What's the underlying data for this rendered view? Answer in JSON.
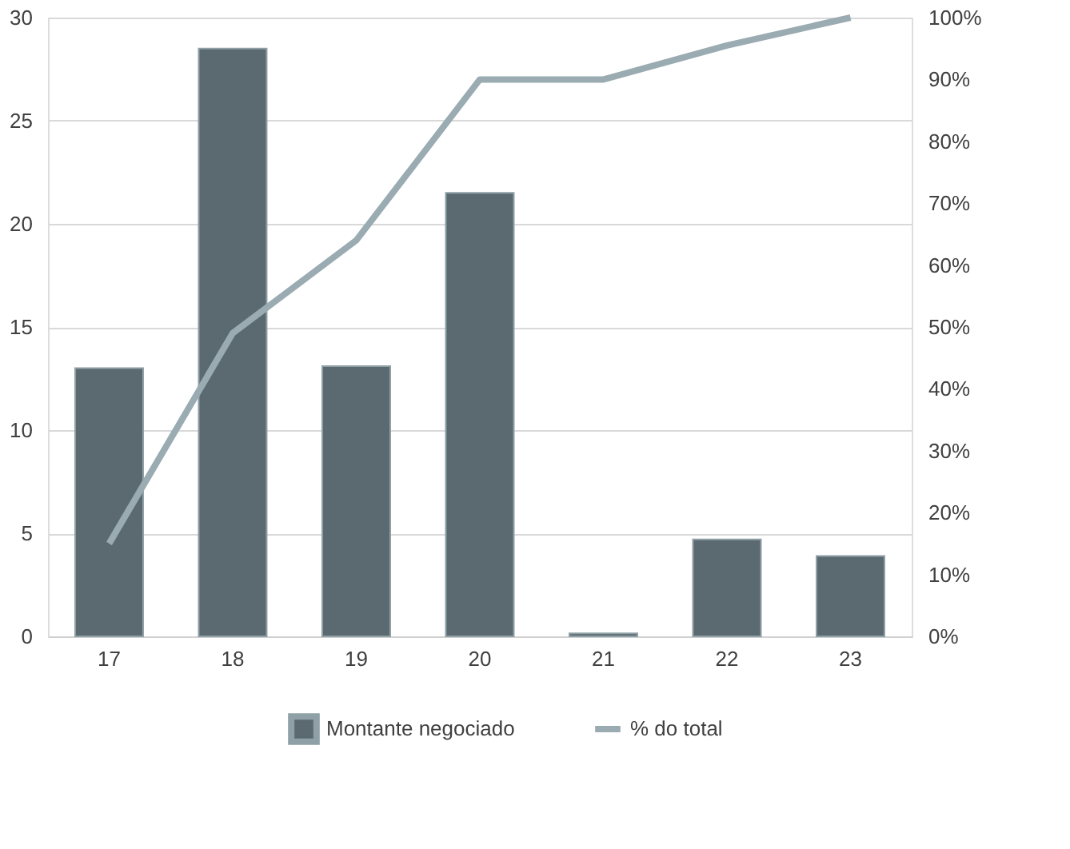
{
  "chart_data": {
    "type": "bar",
    "categories": [
      "17",
      "18",
      "19",
      "20",
      "21",
      "22",
      "23"
    ],
    "series": [
      {
        "name": "Montante negociado",
        "color": "#5b6a70",
        "values": [
          13.0,
          28.5,
          13.1,
          21.5,
          0.15,
          4.7,
          3.9
        ]
      },
      {
        "name": "% do total",
        "type": "line",
        "axis": "y2",
        "color": "#9aabb2",
        "values": [
          15,
          49,
          64,
          90,
          90,
          95.5,
          100
        ]
      }
    ],
    "ylim": [
      0,
      30
    ],
    "yticks": [
      0,
      5,
      10,
      15,
      20,
      25,
      30
    ],
    "y2lim": [
      0,
      100
    ],
    "y2ticks": [
      {
        "value": 0,
        "label": "0%"
      },
      {
        "value": 10,
        "label": "10%"
      },
      {
        "value": 20,
        "label": "20%"
      },
      {
        "value": 30,
        "label": "30%"
      },
      {
        "value": 40,
        "label": "40%"
      },
      {
        "value": 50,
        "label": "50%"
      },
      {
        "value": 60,
        "label": "60%"
      },
      {
        "value": 70,
        "label": "70%"
      },
      {
        "value": 80,
        "label": "80%"
      },
      {
        "value": 90,
        "label": "90%"
      },
      {
        "value": 100,
        "label": "100%"
      }
    ],
    "grid": "y",
    "legend": "bottom"
  }
}
